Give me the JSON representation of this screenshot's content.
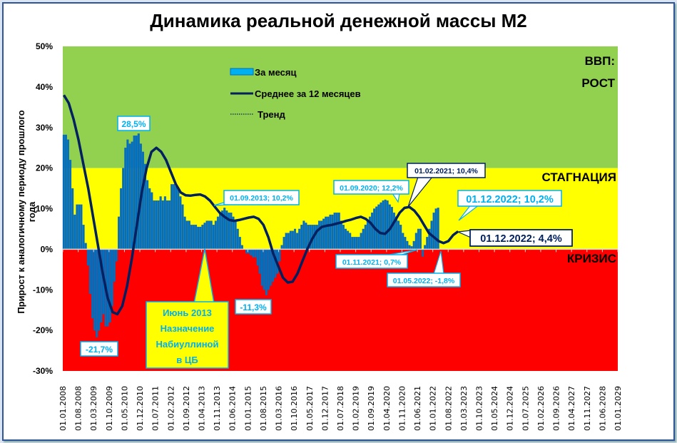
{
  "title": "Динамика реальной денежной массы М2",
  "colors": {
    "growth_zone": "#92d050",
    "stagnation_zone": "#ffff00",
    "crisis_zone": "#ff0000",
    "bars": "#0070c0",
    "bars_legend": "#00b0f0",
    "avg_line": "#002060",
    "callout_light": "#00b0f0",
    "frame": "#2f5597"
  },
  "legend": {
    "monthly": "За месяц",
    "avg12": "Среднее за 12 месяцев",
    "trend": "Тренд"
  },
  "zones": {
    "growth_line1": "ВВП:",
    "growth_line2": "РОСТ",
    "stagnation": "СТАГНАЦИЯ",
    "crisis": "КРИЗИС"
  },
  "callouts": {
    "max2010": "28,5%",
    "min2009": "-21,7%",
    "sep2013": "01.09.2013; 10,2%",
    "min2015": "-11,3%",
    "sep2020": "01.09.2020; 12,2%",
    "feb2021": "01.02.2021; 10,4%",
    "nov2021": "01.11.2021; 0,7%",
    "may2022": "01.05.2022; -1,8%",
    "dec2022_month": "01.12.2022; 10,2%",
    "dec2022_avg": "01.12.2022; 4,4%",
    "nabiullina": [
      "Июнь 2013",
      "Назначение",
      "Набиуллиной",
      "в ЦБ"
    ]
  },
  "chart_data": {
    "type": "bar",
    "title": "Динамика реальной денежной массы М2",
    "xlabel": "",
    "ylabel": "Прирост к аналогичному периоду прошлого года",
    "ylim": [
      -30,
      50
    ],
    "yticks": [
      "50%",
      "40%",
      "30%",
      "20%",
      "10%",
      "0%",
      "-10%",
      "-20%",
      "-30%"
    ],
    "x_start": "01.01.2008",
    "x_end": "01.01.2029",
    "x_ticks": [
      "01.01.2008",
      "01.08.2008",
      "01.03.2009",
      "01.10.2009",
      "01.05.2010",
      "01.12.2010",
      "01.07.2011",
      "01.02.2012",
      "01.09.2012",
      "01.04.2013",
      "01.11.2013",
      "01.06.2014",
      "01.01.2015",
      "01.08.2015",
      "01.03.2016",
      "01.10.2016",
      "01.05.2017",
      "01.12.2017",
      "01.07.2018",
      "01.02.2019",
      "01.09.2019",
      "01.04.2020",
      "01.11.2020",
      "01.06.2021",
      "01.01.2022",
      "01.08.2022",
      "01.03.2023",
      "01.10.2023",
      "01.05.2024",
      "01.12.2024",
      "01.07.2025",
      "01.02.2026",
      "01.09.2026",
      "01.04.2027",
      "01.11.2027",
      "01.06.2028",
      "01.01.2029"
    ],
    "background_bands": [
      {
        "label": "ВВП: РОСТ",
        "from": 20,
        "to": 50
      },
      {
        "label": "СТАГНАЦИЯ",
        "from": 0,
        "to": 20
      },
      {
        "label": "КРИЗИС",
        "from": -30,
        "to": 0
      }
    ],
    "series": [
      {
        "name": "За месяц",
        "type": "bar",
        "start": "2008-01",
        "values": [
          28.2,
          28.2,
          27,
          22,
          15,
          8.5,
          11,
          11,
          11,
          6,
          1.5,
          -4,
          -11,
          -17,
          -20,
          -21.7,
          -20,
          -18,
          -16,
          -19,
          -19,
          -18,
          -14,
          -8,
          -3,
          8,
          15,
          20,
          25,
          27,
          26,
          26.5,
          28,
          28,
          28.5,
          26,
          24,
          21,
          17,
          15,
          14,
          12,
          12,
          12,
          13,
          12,
          13,
          12,
          12,
          16,
          16,
          15.5,
          15,
          13,
          11,
          8,
          7,
          7,
          6,
          6,
          6,
          5.5,
          5.5,
          6,
          6.5,
          7,
          7,
          7,
          6,
          7,
          8,
          9,
          9.5,
          10.2,
          9.5,
          9,
          9,
          8,
          7,
          5,
          3,
          1,
          0,
          -1,
          -1,
          -1.5,
          -2,
          -2,
          -4,
          -6,
          -9,
          -10,
          -11.3,
          -10,
          -9,
          -8,
          -7,
          -6,
          -3,
          1,
          3,
          4,
          4,
          4.5,
          4.5,
          5,
          4,
          5,
          6,
          7,
          6.5,
          6,
          6,
          6,
          6,
          6,
          7,
          7,
          7.5,
          8,
          8,
          8.5,
          8.5,
          9,
          9,
          9,
          7,
          6,
          5,
          4.5,
          4,
          3,
          3,
          3,
          3,
          4,
          5,
          6,
          7,
          8,
          9,
          10,
          10.5,
          11,
          11.5,
          12,
          12.2,
          12,
          11,
          10.4,
          9,
          8,
          7,
          6,
          4,
          3,
          2,
          1,
          0.7,
          2,
          4,
          5,
          5,
          -1.8,
          1,
          3,
          5,
          7,
          9,
          10,
          10.2
        ]
      },
      {
        "name": "Среднее за 12 месяцев",
        "type": "line",
        "start": "2008-01",
        "values": [
          38,
          36,
          32,
          27,
          21,
          15,
          8,
          1,
          -6,
          -12,
          -15.5,
          -16,
          -14,
          -9,
          -2,
          6,
          14,
          20,
          24,
          25,
          24,
          22,
          19,
          16,
          14,
          13.3,
          13.2,
          13.4,
          13.5,
          13,
          12,
          10.5,
          9,
          8,
          7.2,
          7,
          7.2,
          7.5,
          7.8,
          8,
          7.5,
          6,
          3,
          -1,
          -4,
          -7,
          -8.2,
          -8,
          -6,
          -3,
          0,
          2.5,
          4.5,
          5.5,
          5.8,
          6,
          6.3,
          6.6,
          7,
          7.3,
          7.7,
          8,
          7.5,
          6.5,
          5,
          4,
          3.8,
          5,
          7,
          9,
          10.2,
          10.4,
          9.5,
          8,
          6,
          4,
          3,
          2,
          1.5,
          2,
          3.5,
          4.4
        ]
      },
      {
        "name": "Тренд",
        "type": "line",
        "style": "dotted",
        "values": []
      }
    ]
  }
}
